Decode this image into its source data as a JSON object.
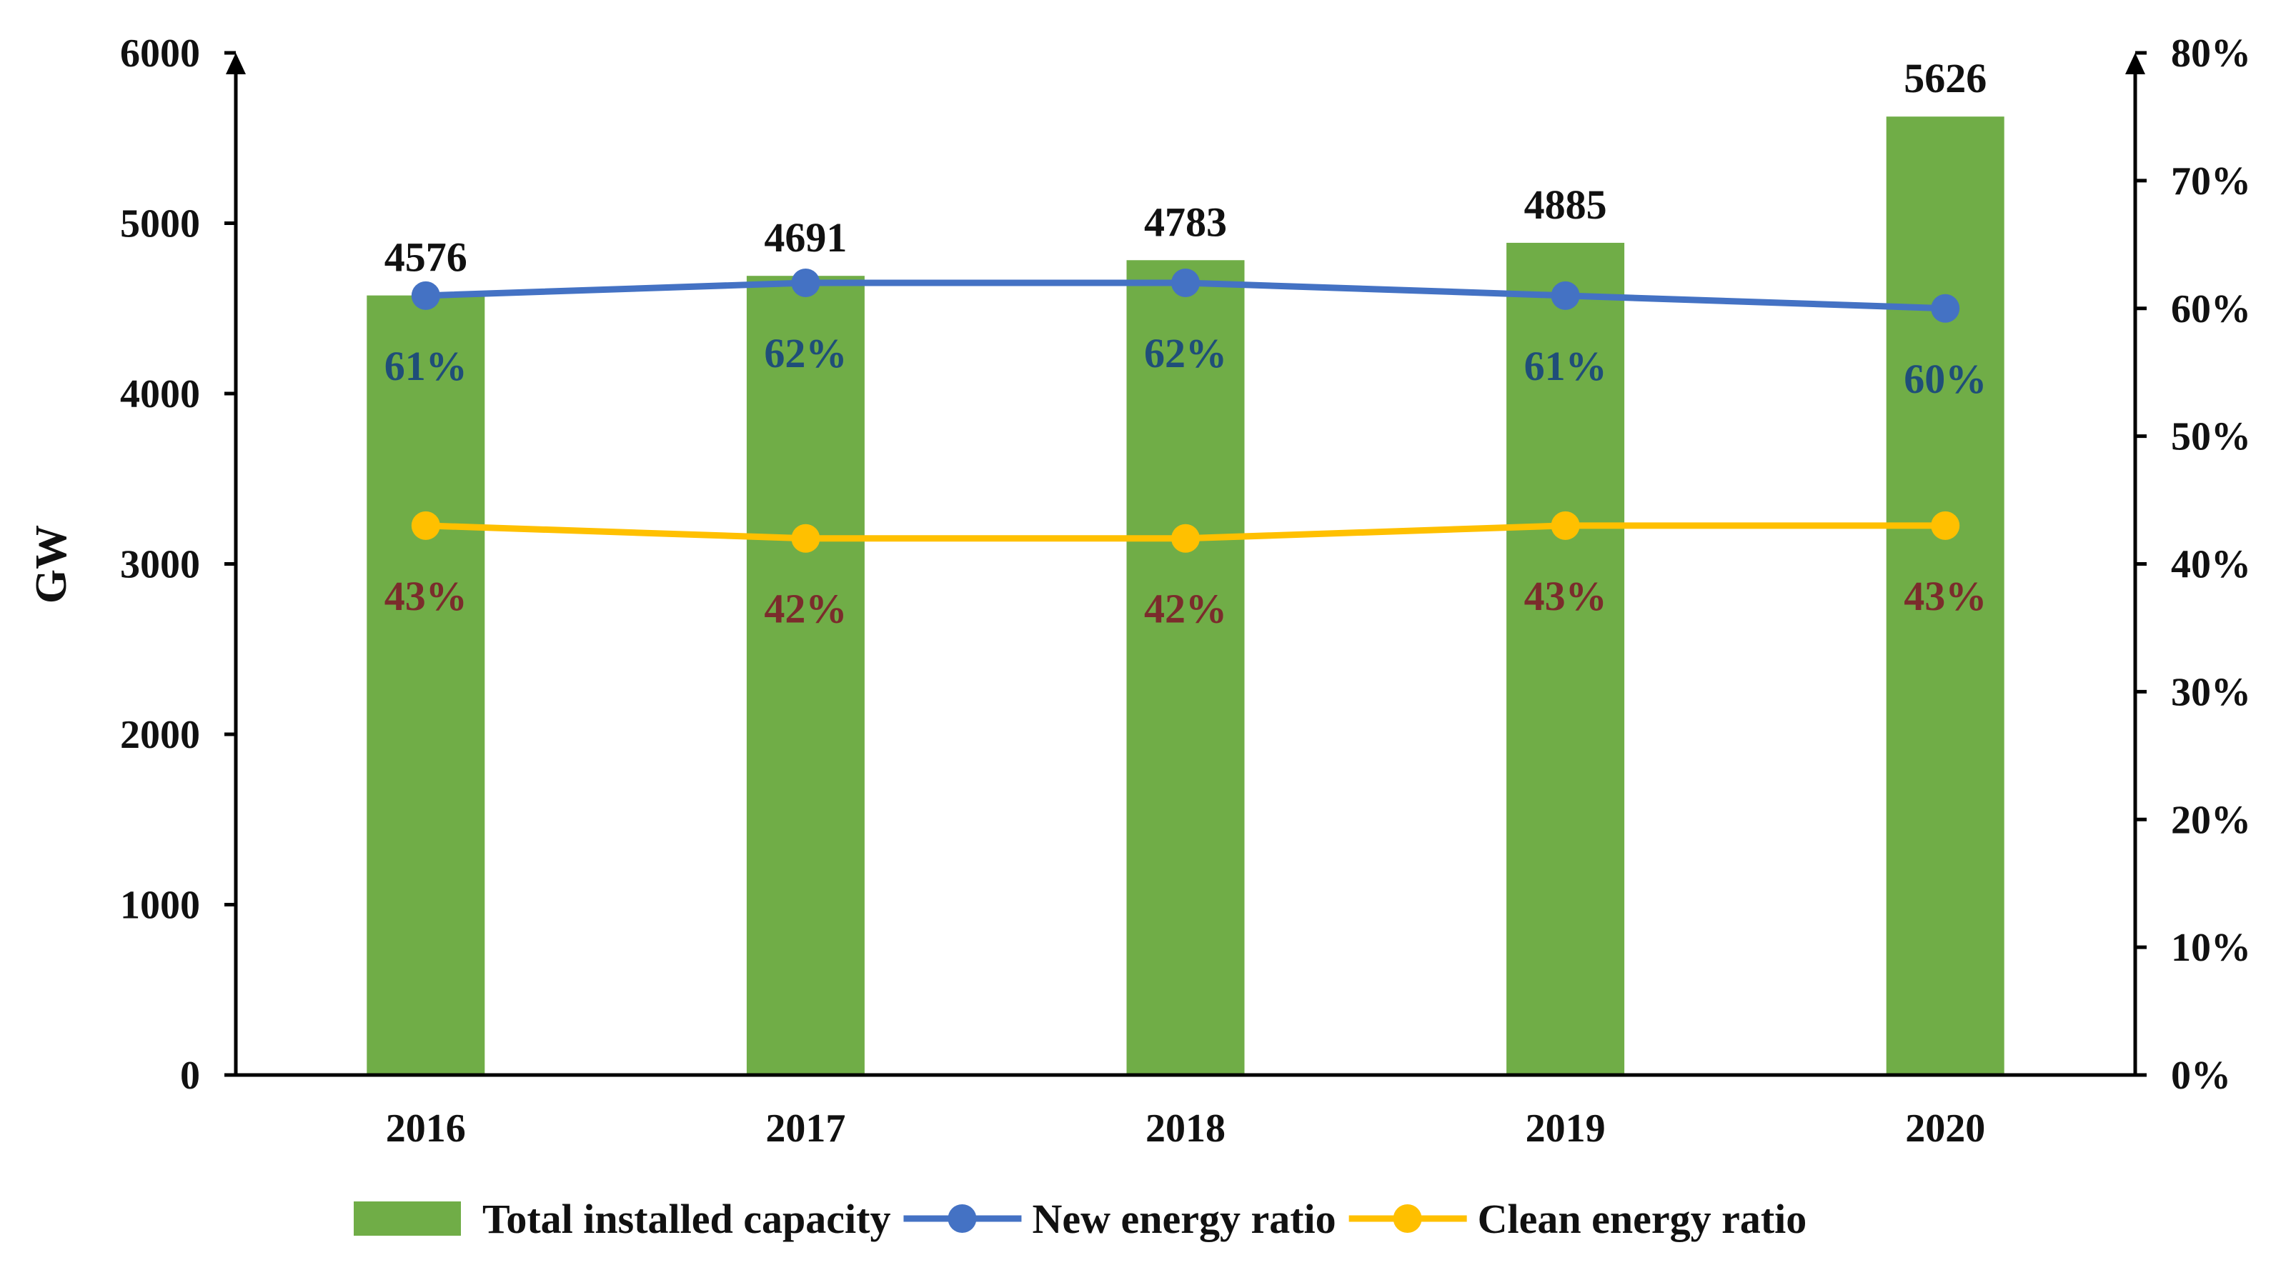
{
  "chart_data": {
    "type": "bar",
    "title": "",
    "categories": [
      "2016",
      "2017",
      "2018",
      "2019",
      "2020"
    ],
    "ylabel": "GW",
    "ylim": [
      0,
      6000
    ],
    "yticks": [
      "0",
      "1000",
      "2000",
      "3000",
      "4000",
      "5000",
      "6000"
    ],
    "y2lim": [
      0,
      80
    ],
    "y2ticks": [
      "0%",
      "10%",
      "20%",
      "30%",
      "40%",
      "50%",
      "60%",
      "70%",
      "80%"
    ],
    "series": [
      {
        "name": "Total installed capacity",
        "kind": "bar",
        "axis": "left",
        "color": "#70ad47",
        "values": [
          4576,
          4691,
          4783,
          4885,
          5626
        ],
        "labels": [
          "4576",
          "4691",
          "4783",
          "4885",
          "5626"
        ],
        "label_color": "#111111"
      },
      {
        "name": "New energy ratio",
        "kind": "line",
        "axis": "right",
        "color": "#4472c4",
        "values": [
          61,
          62,
          62,
          61,
          60
        ],
        "labels": [
          "61%",
          "62%",
          "62%",
          "61%",
          "60%"
        ],
        "label_color": "#1f4e79"
      },
      {
        "name": "Clean energy ratio",
        "kind": "line",
        "axis": "right",
        "color": "#ffc000",
        "values": [
          43,
          42,
          42,
          43,
          43
        ],
        "labels": [
          "43%",
          "42%",
          "42%",
          "43%",
          "43%"
        ],
        "label_color": "#7b2c2c"
      }
    ],
    "legend": "bottom"
  }
}
